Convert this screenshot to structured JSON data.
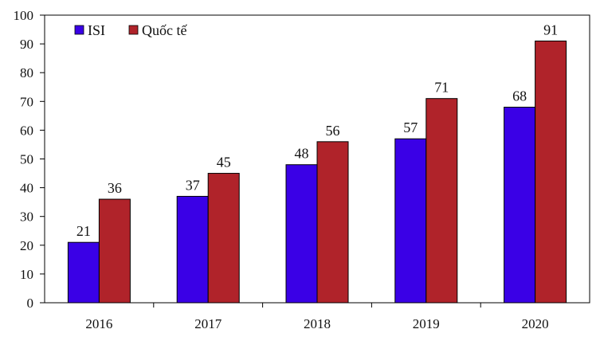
{
  "chart_data": {
    "type": "bar",
    "categories": [
      "2016",
      "2017",
      "2018",
      "2019",
      "2020"
    ],
    "series": [
      {
        "name": "ISI",
        "values": [
          21,
          37,
          48,
          57,
          68
        ],
        "color": "#3a00e6"
      },
      {
        "name": "Quốc tế",
        "values": [
          36,
          45,
          56,
          71,
          91
        ],
        "color": "#b0232a"
      }
    ],
    "ylim": [
      0,
      100
    ],
    "yticks": [
      0,
      10,
      20,
      30,
      40,
      50,
      60,
      70,
      80,
      90,
      100
    ],
    "legend_position": "top-left",
    "grid": false,
    "data_labels": true
  }
}
